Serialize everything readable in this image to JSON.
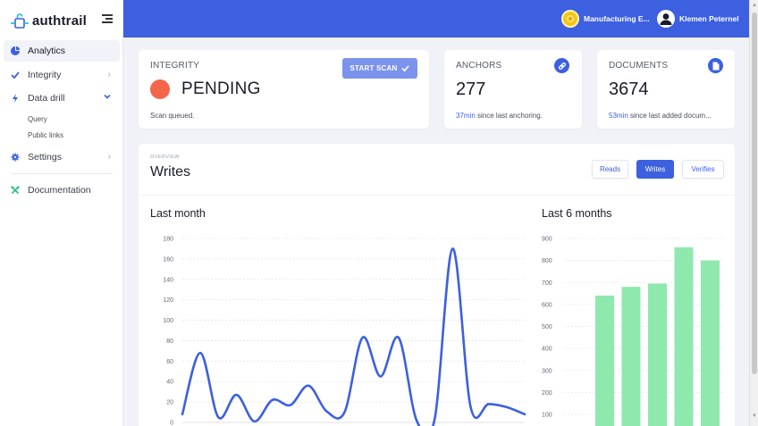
{
  "app": {
    "name": "authtrail"
  },
  "sidebar": {
    "items": [
      {
        "label": "Analytics",
        "icon": "pie-chart-icon",
        "active": true
      },
      {
        "label": "Integrity",
        "icon": "check-icon"
      },
      {
        "label": "Data drill",
        "icon": "bolt-icon",
        "expanded": true
      },
      {
        "label": "Settings",
        "icon": "gear-icon"
      },
      {
        "label": "Documentation",
        "icon": "tools-icon"
      }
    ],
    "subitems": [
      {
        "label": "Query"
      },
      {
        "label": "Public links"
      }
    ]
  },
  "topbar": {
    "org_name": "Manufacturing E...",
    "user_name": "Klemen Peternel"
  },
  "integrity": {
    "label": "INTEGRITY",
    "status": "PENDING",
    "status_color": "#f5654a",
    "button_label": "START SCAN",
    "note": "Scan queued."
  },
  "anchors": {
    "label": "ANCHORS",
    "value": "277",
    "foot_highlight": "37min",
    "foot_text": " since last anchoring."
  },
  "documents": {
    "label": "DOCUMENTS",
    "value": "3674",
    "foot_highlight": "53min",
    "foot_text": " since last added docum..."
  },
  "overview": {
    "kicker": "OVERVIEW",
    "title": "Writes",
    "tabs": [
      {
        "label": "Reads"
      },
      {
        "label": "Writes",
        "active": true
      },
      {
        "label": "Verifies"
      }
    ]
  },
  "colors": {
    "accent": "#3c60e0",
    "bar": "#8fe8ae",
    "line": "#3c60e0"
  },
  "chart_data": [
    {
      "type": "line",
      "title": "Last month",
      "ylim": [
        0,
        180
      ],
      "yticks": [
        0,
        20,
        40,
        60,
        80,
        100,
        120,
        140,
        160,
        180
      ],
      "values": [
        8,
        68,
        5,
        27,
        1,
        22,
        17,
        36,
        11,
        10,
        83,
        45,
        83,
        2,
        3,
        170,
        15,
        18,
        15,
        8
      ],
      "grid": true
    },
    {
      "type": "bar",
      "title": "Last 6 months",
      "ylim": [
        100,
        900
      ],
      "yticks": [
        100,
        200,
        300,
        400,
        500,
        600,
        700,
        800,
        900
      ],
      "values": [
        640,
        680,
        695,
        860,
        800
      ],
      "grid": true
    }
  ]
}
